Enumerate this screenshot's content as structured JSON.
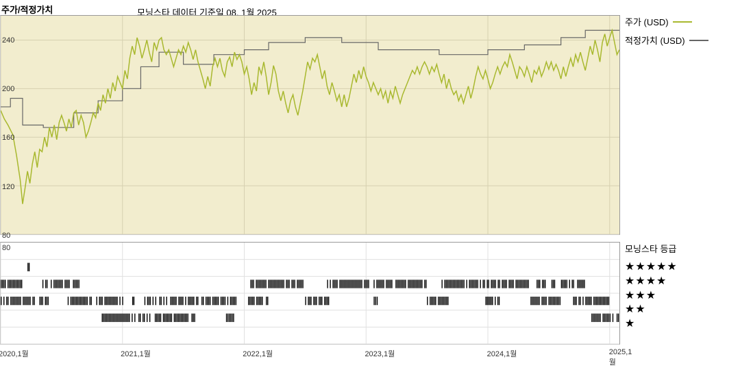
{
  "header": {
    "title": "주가/적정가치",
    "subtitle": "모닝스타 데이터 기준일 08. 1월 2025"
  },
  "chart": {
    "type": "line-step-combo",
    "background_color": "#f2edce",
    "grid_color": "#d6d0b0",
    "border_color": "#999999",
    "ylim": [
      80,
      260
    ],
    "yticks": [
      80,
      120,
      160,
      200,
      240
    ],
    "xlim": [
      2020.0,
      2025.08
    ],
    "xticks": [
      {
        "value": 2020.0,
        "label": "2020,1월"
      },
      {
        "value": 2021.0,
        "label": "2021,1월"
      },
      {
        "value": 2022.0,
        "label": "2022,1월"
      },
      {
        "value": 2023.0,
        "label": "2023,1월"
      },
      {
        "value": 2024.0,
        "label": "2024,1월"
      },
      {
        "value": 2025.0,
        "label": "2025,1월"
      }
    ],
    "series_price": {
      "label": "주가 (USD)",
      "color": "#a8b82e",
      "line_width": 1.5,
      "data": [
        [
          2020.0,
          182
        ],
        [
          2020.03,
          175
        ],
        [
          2020.06,
          170
        ],
        [
          2020.1,
          162
        ],
        [
          2020.13,
          145
        ],
        [
          2020.16,
          125
        ],
        [
          2020.18,
          105
        ],
        [
          2020.2,
          118
        ],
        [
          2020.22,
          132
        ],
        [
          2020.24,
          122
        ],
        [
          2020.26,
          138
        ],
        [
          2020.28,
          148
        ],
        [
          2020.3,
          135
        ],
        [
          2020.32,
          150
        ],
        [
          2020.34,
          148
        ],
        [
          2020.36,
          160
        ],
        [
          2020.38,
          152
        ],
        [
          2020.4,
          168
        ],
        [
          2020.42,
          160
        ],
        [
          2020.44,
          170
        ],
        [
          2020.46,
          158
        ],
        [
          2020.48,
          172
        ],
        [
          2020.5,
          178
        ],
        [
          2020.52,
          172
        ],
        [
          2020.54,
          165
        ],
        [
          2020.56,
          175
        ],
        [
          2020.58,
          168
        ],
        [
          2020.6,
          180
        ],
        [
          2020.62,
          182
        ],
        [
          2020.64,
          170
        ],
        [
          2020.66,
          178
        ],
        [
          2020.68,
          172
        ],
        [
          2020.7,
          160
        ],
        [
          2020.72,
          165
        ],
        [
          2020.74,
          172
        ],
        [
          2020.76,
          180
        ],
        [
          2020.78,
          176
        ],
        [
          2020.8,
          188
        ],
        [
          2020.82,
          182
        ],
        [
          2020.84,
          195
        ],
        [
          2020.86,
          188
        ],
        [
          2020.88,
          200
        ],
        [
          2020.9,
          192
        ],
        [
          2020.92,
          205
        ],
        [
          2020.94,
          198
        ],
        [
          2020.96,
          210
        ],
        [
          2020.98,
          205
        ],
        [
          2021.0,
          200
        ],
        [
          2021.02,
          215
        ],
        [
          2021.04,
          208
        ],
        [
          2021.06,
          225
        ],
        [
          2021.08,
          235
        ],
        [
          2021.1,
          228
        ],
        [
          2021.12,
          242
        ],
        [
          2021.14,
          235
        ],
        [
          2021.16,
          225
        ],
        [
          2021.18,
          232
        ],
        [
          2021.2,
          240
        ],
        [
          2021.22,
          230
        ],
        [
          2021.24,
          222
        ],
        [
          2021.26,
          238
        ],
        [
          2021.28,
          232
        ],
        [
          2021.3,
          240
        ],
        [
          2021.32,
          242
        ],
        [
          2021.34,
          232
        ],
        [
          2021.36,
          228
        ],
        [
          2021.38,
          232
        ],
        [
          2021.4,
          225
        ],
        [
          2021.42,
          218
        ],
        [
          2021.44,
          225
        ],
        [
          2021.46,
          232
        ],
        [
          2021.48,
          228
        ],
        [
          2021.5,
          235
        ],
        [
          2021.52,
          230
        ],
        [
          2021.54,
          238
        ],
        [
          2021.56,
          232
        ],
        [
          2021.58,
          224
        ],
        [
          2021.6,
          232
        ],
        [
          2021.62,
          222
        ],
        [
          2021.64,
          215
        ],
        [
          2021.66,
          208
        ],
        [
          2021.68,
          200
        ],
        [
          2021.7,
          210
        ],
        [
          2021.72,
          202
        ],
        [
          2021.74,
          218
        ],
        [
          2021.76,
          225
        ],
        [
          2021.78,
          218
        ],
        [
          2021.8,
          225
        ],
        [
          2021.82,
          215
        ],
        [
          2021.84,
          210
        ],
        [
          2021.86,
          222
        ],
        [
          2021.88,
          226
        ],
        [
          2021.9,
          218
        ],
        [
          2021.92,
          230
        ],
        [
          2021.94,
          224
        ],
        [
          2021.96,
          228
        ],
        [
          2021.98,
          222
        ],
        [
          2022.0,
          212
        ],
        [
          2022.02,
          218
        ],
        [
          2022.04,
          208
        ],
        [
          2022.06,
          195
        ],
        [
          2022.08,
          205
        ],
        [
          2022.1,
          198
        ],
        [
          2022.12,
          218
        ],
        [
          2022.14,
          212
        ],
        [
          2022.16,
          222
        ],
        [
          2022.18,
          210
        ],
        [
          2022.2,
          195
        ],
        [
          2022.22,
          205
        ],
        [
          2022.24,
          219
        ],
        [
          2022.26,
          212
        ],
        [
          2022.28,
          198
        ],
        [
          2022.3,
          190
        ],
        [
          2022.32,
          198
        ],
        [
          2022.34,
          188
        ],
        [
          2022.36,
          180
        ],
        [
          2022.38,
          190
        ],
        [
          2022.4,
          195
        ],
        [
          2022.42,
          185
        ],
        [
          2022.44,
          178
        ],
        [
          2022.46,
          188
        ],
        [
          2022.48,
          198
        ],
        [
          2022.5,
          210
        ],
        [
          2022.52,
          222
        ],
        [
          2022.54,
          216
        ],
        [
          2022.56,
          225
        ],
        [
          2022.58,
          222
        ],
        [
          2022.6,
          228
        ],
        [
          2022.62,
          218
        ],
        [
          2022.64,
          208
        ],
        [
          2022.66,
          215
        ],
        [
          2022.68,
          202
        ],
        [
          2022.7,
          195
        ],
        [
          2022.72,
          205
        ],
        [
          2022.74,
          198
        ],
        [
          2022.76,
          190
        ],
        [
          2022.78,
          195
        ],
        [
          2022.8,
          185
        ],
        [
          2022.82,
          195
        ],
        [
          2022.84,
          185
        ],
        [
          2022.86,
          192
        ],
        [
          2022.88,
          202
        ],
        [
          2022.9,
          212
        ],
        [
          2022.92,
          205
        ],
        [
          2022.94,
          215
        ],
        [
          2022.96,
          208
        ],
        [
          2022.98,
          218
        ],
        [
          2023.0,
          210
        ],
        [
          2023.02,
          205
        ],
        [
          2023.04,
          198
        ],
        [
          2023.06,
          205
        ],
        [
          2023.08,
          200
        ],
        [
          2023.1,
          195
        ],
        [
          2023.12,
          200
        ],
        [
          2023.14,
          192
        ],
        [
          2023.16,
          198
        ],
        [
          2023.18,
          188
        ],
        [
          2023.2,
          198
        ],
        [
          2023.22,
          192
        ],
        [
          2023.24,
          202
        ],
        [
          2023.26,
          195
        ],
        [
          2023.28,
          188
        ],
        [
          2023.3,
          195
        ],
        [
          2023.32,
          200
        ],
        [
          2023.34,
          205
        ],
        [
          2023.36,
          210
        ],
        [
          2023.38,
          215
        ],
        [
          2023.4,
          212
        ],
        [
          2023.42,
          218
        ],
        [
          2023.44,
          212
        ],
        [
          2023.46,
          218
        ],
        [
          2023.48,
          222
        ],
        [
          2023.5,
          218
        ],
        [
          2023.52,
          212
        ],
        [
          2023.54,
          218
        ],
        [
          2023.56,
          214
        ],
        [
          2023.58,
          220
        ],
        [
          2023.6,
          212
        ],
        [
          2023.62,
          205
        ],
        [
          2023.64,
          212
        ],
        [
          2023.66,
          200
        ],
        [
          2023.68,
          208
        ],
        [
          2023.7,
          200
        ],
        [
          2023.72,
          195
        ],
        [
          2023.74,
          198
        ],
        [
          2023.76,
          190
        ],
        [
          2023.78,
          195
        ],
        [
          2023.8,
          188
        ],
        [
          2023.82,
          195
        ],
        [
          2023.84,
          202
        ],
        [
          2023.86,
          192
        ],
        [
          2023.88,
          200
        ],
        [
          2023.9,
          210
        ],
        [
          2023.92,
          218
        ],
        [
          2023.94,
          212
        ],
        [
          2023.96,
          208
        ],
        [
          2023.98,
          215
        ],
        [
          2024.0,
          208
        ],
        [
          2024.02,
          200
        ],
        [
          2024.04,
          205
        ],
        [
          2024.06,
          212
        ],
        [
          2024.08,
          218
        ],
        [
          2024.1,
          212
        ],
        [
          2024.12,
          218
        ],
        [
          2024.14,
          222
        ],
        [
          2024.16,
          218
        ],
        [
          2024.18,
          228
        ],
        [
          2024.2,
          222
        ],
        [
          2024.22,
          215
        ],
        [
          2024.24,
          208
        ],
        [
          2024.26,
          218
        ],
        [
          2024.28,
          215
        ],
        [
          2024.3,
          210
        ],
        [
          2024.32,
          218
        ],
        [
          2024.34,
          212
        ],
        [
          2024.36,
          205
        ],
        [
          2024.38,
          215
        ],
        [
          2024.4,
          212
        ],
        [
          2024.42,
          218
        ],
        [
          2024.44,
          210
        ],
        [
          2024.46,
          215
        ],
        [
          2024.48,
          222
        ],
        [
          2024.5,
          216
        ],
        [
          2024.52,
          222
        ],
        [
          2024.54,
          215
        ],
        [
          2024.56,
          220
        ],
        [
          2024.58,
          215
        ],
        [
          2024.6,
          208
        ],
        [
          2024.62,
          218
        ],
        [
          2024.64,
          210
        ],
        [
          2024.66,
          218
        ],
        [
          2024.68,
          225
        ],
        [
          2024.7,
          218
        ],
        [
          2024.72,
          228
        ],
        [
          2024.74,
          222
        ],
        [
          2024.76,
          230
        ],
        [
          2024.78,
          222
        ],
        [
          2024.8,
          215
        ],
        [
          2024.82,
          225
        ],
        [
          2024.84,
          235
        ],
        [
          2024.86,
          228
        ],
        [
          2024.88,
          240
        ],
        [
          2024.9,
          232
        ],
        [
          2024.92,
          222
        ],
        [
          2024.94,
          238
        ],
        [
          2024.96,
          245
        ],
        [
          2024.98,
          235
        ],
        [
          2025.0,
          242
        ],
        [
          2025.02,
          248
        ],
        [
          2025.04,
          238
        ],
        [
          2025.06,
          228
        ],
        [
          2025.08,
          232
        ]
      ]
    },
    "series_fair": {
      "label": "적정가치 (USD)",
      "color": "#666666",
      "line_width": 1.2,
      "data": [
        [
          2020.0,
          185
        ],
        [
          2020.08,
          185
        ],
        [
          2020.08,
          192
        ],
        [
          2020.18,
          192
        ],
        [
          2020.18,
          170
        ],
        [
          2020.35,
          170
        ],
        [
          2020.35,
          168
        ],
        [
          2020.6,
          168
        ],
        [
          2020.6,
          180
        ],
        [
          2020.8,
          180
        ],
        [
          2020.8,
          190
        ],
        [
          2021.0,
          190
        ],
        [
          2021.0,
          200
        ],
        [
          2021.15,
          200
        ],
        [
          2021.15,
          218
        ],
        [
          2021.3,
          218
        ],
        [
          2021.3,
          230
        ],
        [
          2021.5,
          230
        ],
        [
          2021.5,
          220
        ],
        [
          2021.75,
          220
        ],
        [
          2021.75,
          228
        ],
        [
          2022.0,
          228
        ],
        [
          2022.0,
          232
        ],
        [
          2022.2,
          232
        ],
        [
          2022.2,
          238
        ],
        [
          2022.5,
          238
        ],
        [
          2022.5,
          242
        ],
        [
          2022.8,
          242
        ],
        [
          2022.8,
          238
        ],
        [
          2023.1,
          238
        ],
        [
          2023.1,
          232
        ],
        [
          2023.6,
          232
        ],
        [
          2023.6,
          228
        ],
        [
          2024.0,
          228
        ],
        [
          2024.0,
          232
        ],
        [
          2024.3,
          232
        ],
        [
          2024.3,
          236
        ],
        [
          2024.6,
          236
        ],
        [
          2024.6,
          242
        ],
        [
          2024.8,
          242
        ],
        [
          2024.8,
          248
        ],
        [
          2025.08,
          248
        ]
      ]
    }
  },
  "legend": {
    "items": [
      {
        "label": "주가 (USD)",
        "color": "#a8b82e"
      },
      {
        "label": "적정가치 (USD)",
        "color": "#666666"
      }
    ]
  },
  "rating": {
    "title": "모닝스타 등급",
    "ylabel": "80",
    "grid_color": "#e0e0e0",
    "bar_color": "#000000",
    "rows": [
      "★★★★★",
      "★★★★",
      "★★★",
      "★★",
      "★"
    ],
    "segments_5": [
      [
        2020.22,
        2020.24
      ]
    ],
    "segments_4": [
      [
        2020.0,
        2020.18
      ],
      [
        2020.32,
        2020.65
      ],
      [
        2022.05,
        2022.5
      ],
      [
        2022.68,
        2023.5
      ],
      [
        2023.62,
        2024.34
      ],
      [
        2024.4,
        2024.8
      ]
    ],
    "segments_3": [
      [
        2020.0,
        2020.42
      ],
      [
        2020.55,
        2021.02
      ],
      [
        2021.08,
        2021.1
      ],
      [
        2021.18,
        2021.95
      ],
      [
        2022.02,
        2022.2
      ],
      [
        2022.5,
        2022.7
      ],
      [
        2023.05,
        2023.1
      ],
      [
        2023.5,
        2023.68
      ],
      [
        2023.98,
        2024.1
      ],
      [
        2024.35,
        2024.6
      ],
      [
        2024.7,
        2025.0
      ]
    ],
    "segments_2": [
      [
        2020.83,
        2021.6
      ],
      [
        2021.85,
        2021.92
      ],
      [
        2024.85,
        2025.08
      ]
    ],
    "segments_1": []
  }
}
